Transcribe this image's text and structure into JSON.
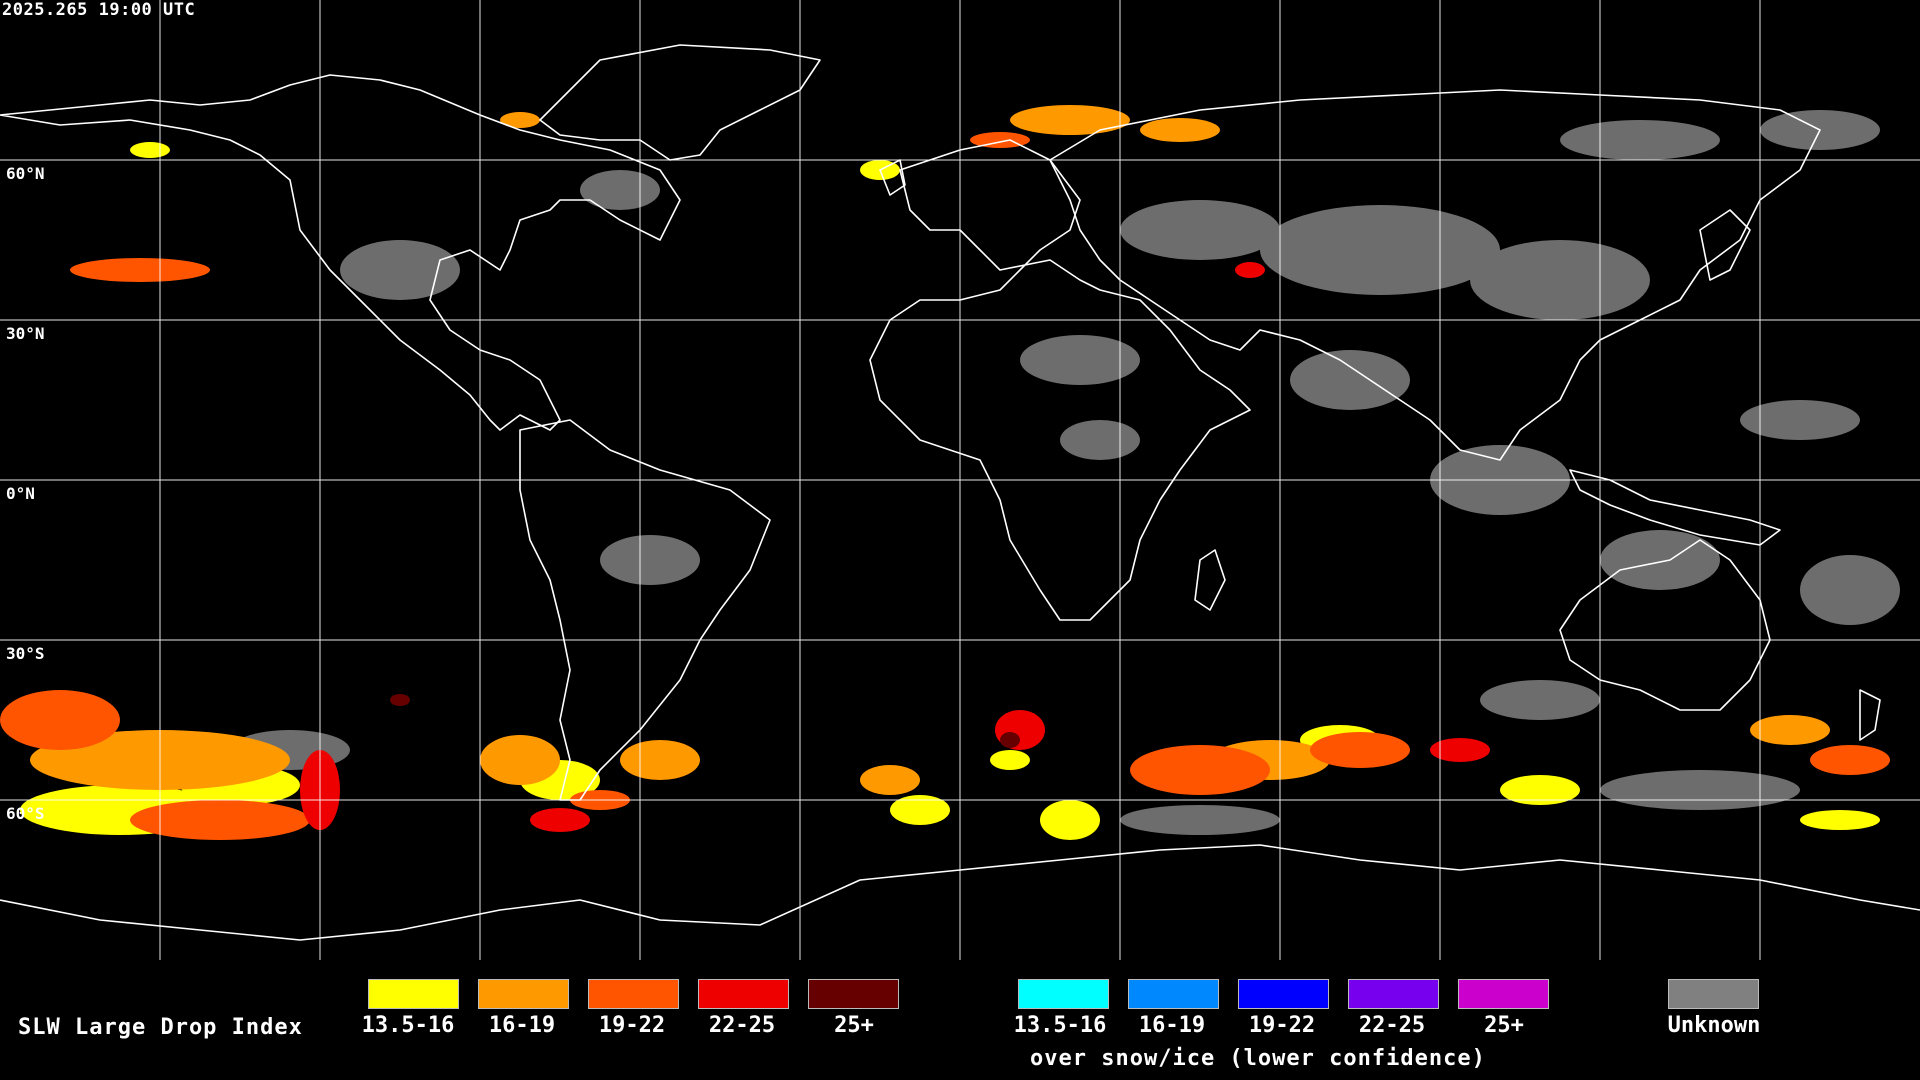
{
  "header": {
    "timestamp": "2025.265 19:00 UTC"
  },
  "map": {
    "projection": "equirectangular",
    "background": "#000000",
    "coastline_color": "#ffffff",
    "grid_color": "#ffffff",
    "lat_labels": [
      "60°N",
      "30°N",
      "0°N",
      "30°S",
      "60°S"
    ],
    "regions_visible": [
      "North America",
      "South America",
      "Greenland",
      "Europe",
      "Africa",
      "Asia",
      "Australia",
      "Antarctica"
    ]
  },
  "legend": {
    "title": "SLW Large Drop Index",
    "primary": [
      {
        "label": "13.5-16",
        "color": "#ffff00"
      },
      {
        "label": "16-19",
        "color": "#ff9900"
      },
      {
        "label": "19-22",
        "color": "#ff5500"
      },
      {
        "label": "22-25",
        "color": "#ee0000"
      },
      {
        "label": "25+",
        "color": "#660000"
      }
    ],
    "snow_ice": [
      {
        "label": "13.5-16",
        "color": "#00ffff"
      },
      {
        "label": "16-19",
        "color": "#0088ff"
      },
      {
        "label": "19-22",
        "color": "#0000ff"
      },
      {
        "label": "22-25",
        "color": "#7700ee"
      },
      {
        "label": "25+",
        "color": "#cc00cc"
      }
    ],
    "snow_ice_caption": "over snow/ice (lower confidence)",
    "unknown": {
      "label": "Unknown",
      "color": "#808080"
    }
  }
}
